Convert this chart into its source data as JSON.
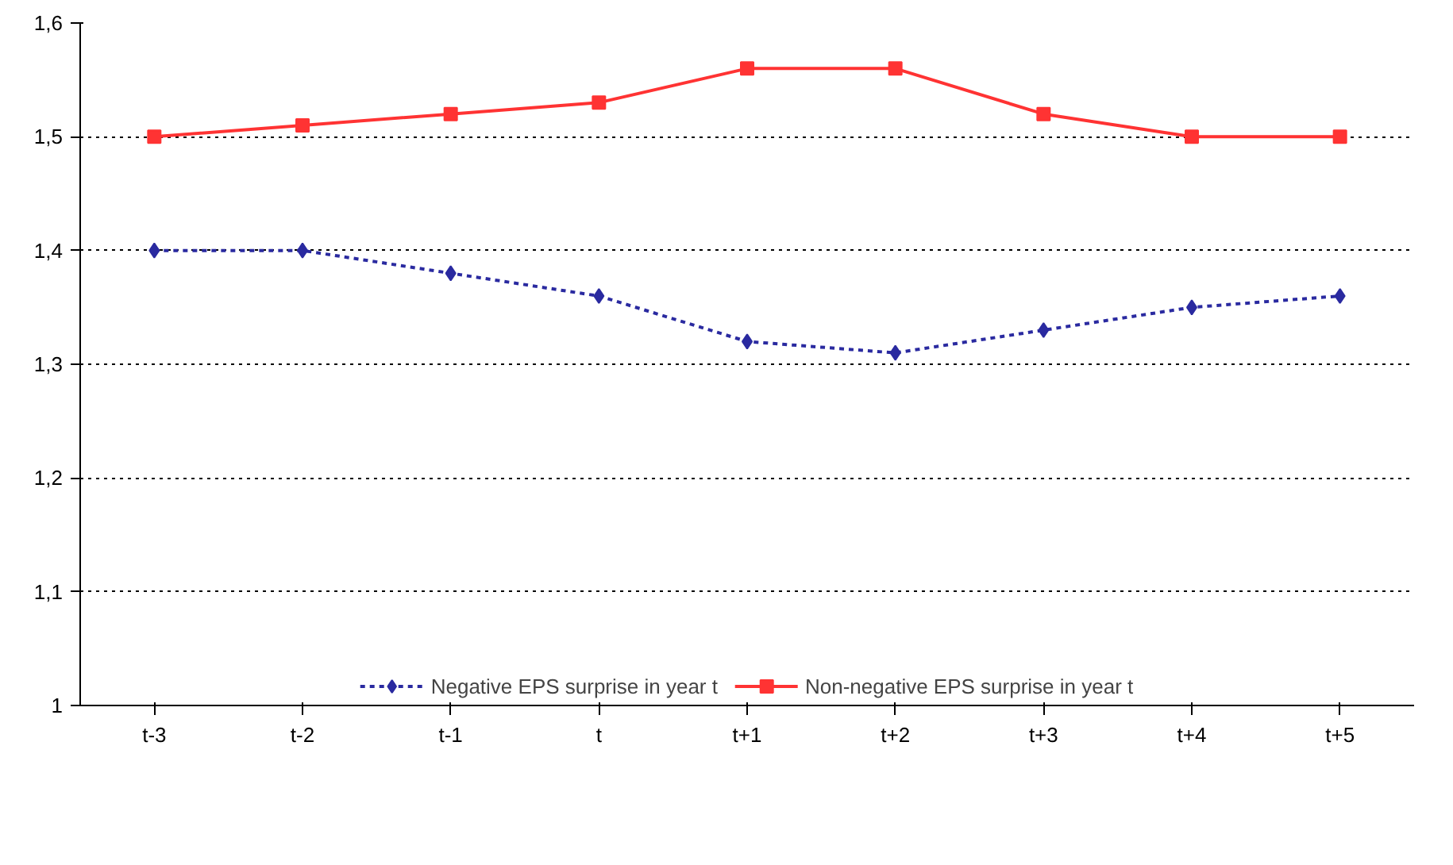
{
  "chart_data": {
    "type": "line",
    "categories": [
      "t-3",
      "t-2",
      "t-1",
      "t",
      "t+1",
      "t+2",
      "t+3",
      "t+4",
      "t+5"
    ],
    "series": [
      {
        "name": "Negative EPS surprise in year t",
        "color": "#2a2aa0",
        "values": [
          1.4,
          1.4,
          1.38,
          1.36,
          1.32,
          1.31,
          1.33,
          1.35,
          1.36
        ],
        "marker": "diamond",
        "line_style": "dotted"
      },
      {
        "name": "Non-negative EPS surprise in year t",
        "color": "#ff3333",
        "values": [
          1.5,
          1.51,
          1.52,
          1.53,
          1.56,
          1.56,
          1.52,
          1.5,
          1.5
        ],
        "marker": "square",
        "line_style": "solid"
      }
    ],
    "ylim": [
      1,
      1.6
    ],
    "yticks": [
      1,
      {
        "value": 1.1,
        "label": "1,1"
      },
      {
        "value": 1.2,
        "label": "1,2"
      },
      {
        "value": 1.3,
        "label": "1,3"
      },
      {
        "value": 1.4,
        "label": "1,4"
      },
      {
        "value": 1.5,
        "label": "1,5"
      },
      {
        "value": 1.6,
        "label": "1,6"
      }
    ],
    "grid": "y",
    "legend": "bottom"
  }
}
